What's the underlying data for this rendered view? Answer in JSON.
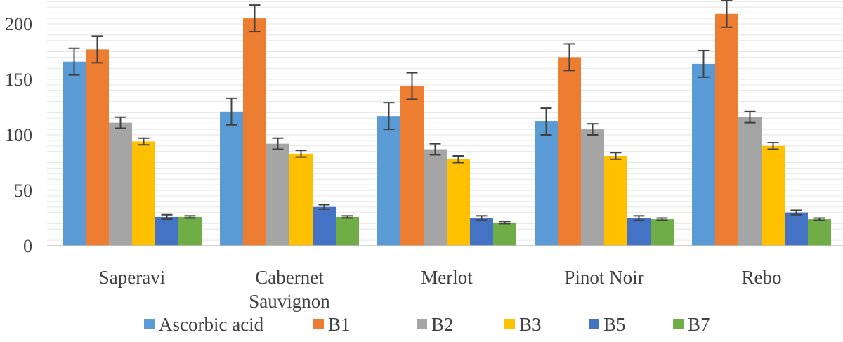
{
  "chart_data": {
    "type": "bar",
    "title": "",
    "xlabel": "",
    "ylabel": "",
    "ylim": [
      0,
      220
    ],
    "yticks": [
      0,
      50,
      100,
      150,
      200
    ],
    "grid": true,
    "legend_position": "bottom",
    "error_bars": true,
    "categories": [
      [
        "Saperavi"
      ],
      [
        "Cabernet",
        "Sauvignon"
      ],
      [
        "Merlot"
      ],
      [
        "Pinot Noir"
      ],
      [
        "Rebo"
      ]
    ],
    "series": [
      {
        "name": "Ascorbic acid",
        "color": "#5B9BD5",
        "values": [
          166,
          121,
          117,
          112,
          164
        ],
        "errors": [
          12,
          12,
          12,
          12,
          12
        ]
      },
      {
        "name": "B1",
        "color": "#ED7D31",
        "values": [
          177,
          205,
          144,
          170,
          209
        ],
        "errors": [
          12,
          12,
          12,
          12,
          12
        ]
      },
      {
        "name": "B2",
        "color": "#A5A5A5",
        "values": [
          111,
          92,
          87,
          105,
          116
        ],
        "errors": [
          5,
          5,
          5,
          5,
          5
        ]
      },
      {
        "name": "B3",
        "color": "#FFC000",
        "values": [
          94,
          83,
          78,
          81,
          90
        ],
        "errors": [
          3,
          3,
          3,
          3,
          3
        ]
      },
      {
        "name": "B5",
        "color": "#4472C4",
        "values": [
          26,
          35,
          25,
          25,
          30
        ],
        "errors": [
          2,
          2,
          2,
          2,
          2
        ]
      },
      {
        "name": "B7",
        "color": "#70AD47",
        "values": [
          26,
          26,
          21,
          24,
          24
        ],
        "errors": [
          1,
          1,
          1,
          1,
          1
        ]
      }
    ]
  }
}
